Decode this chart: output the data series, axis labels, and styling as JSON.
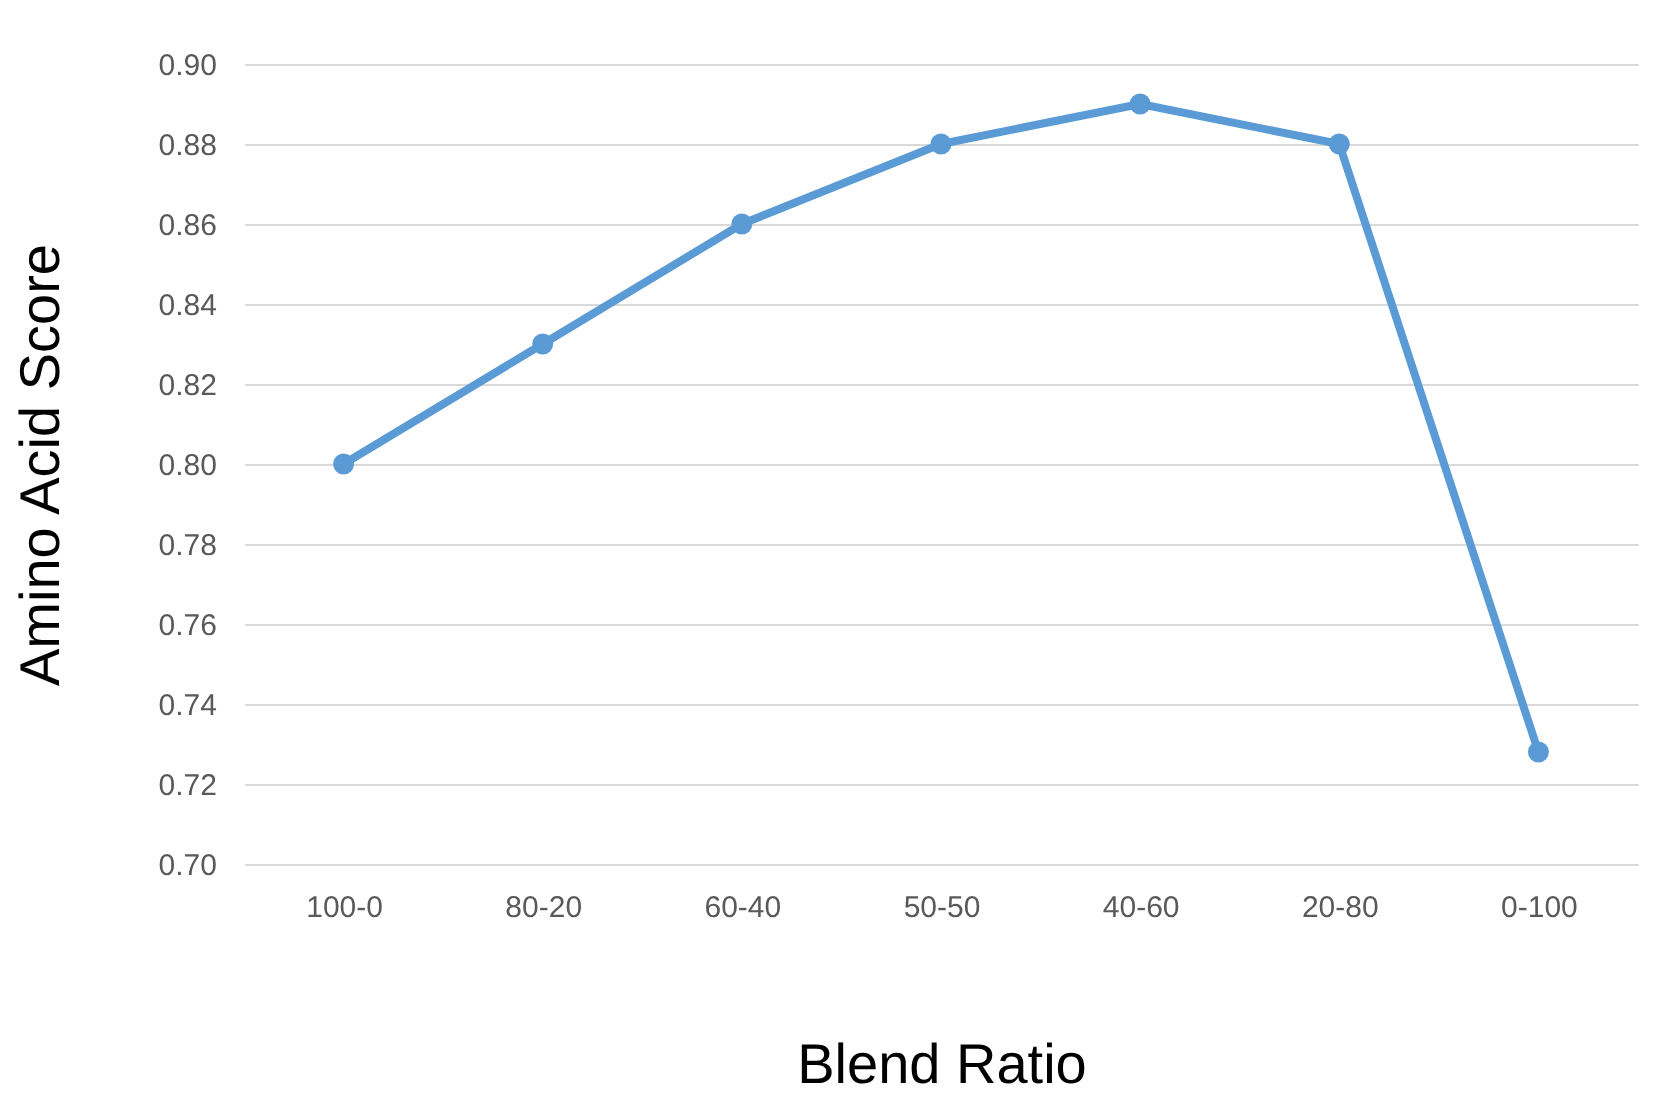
{
  "chart_data": {
    "type": "line",
    "xlabel": "Blend Ratio",
    "ylabel": "Amino Acid Score",
    "categories": [
      "100-0",
      "80-20",
      "60-40",
      "50-50",
      "40-60",
      "20-80",
      "0-100"
    ],
    "series": [
      {
        "color": "#5b9bd5",
        "values": [
          0.8,
          0.83,
          0.86,
          0.88,
          0.89,
          0.88,
          0.728
        ]
      }
    ],
    "ylim": [
      0.7,
      0.9
    ],
    "yticks": [
      {
        "value": 0.7,
        "label": "0.70"
      },
      0.72,
      0.74,
      0.76,
      0.78,
      {
        "value": 0.8,
        "label": "0.80"
      },
      0.82,
      0.84,
      0.86,
      0.88,
      {
        "value": 0.9,
        "label": "0.90"
      }
    ],
    "grid": "y",
    "marker": "circle",
    "line_style": "solid"
  }
}
